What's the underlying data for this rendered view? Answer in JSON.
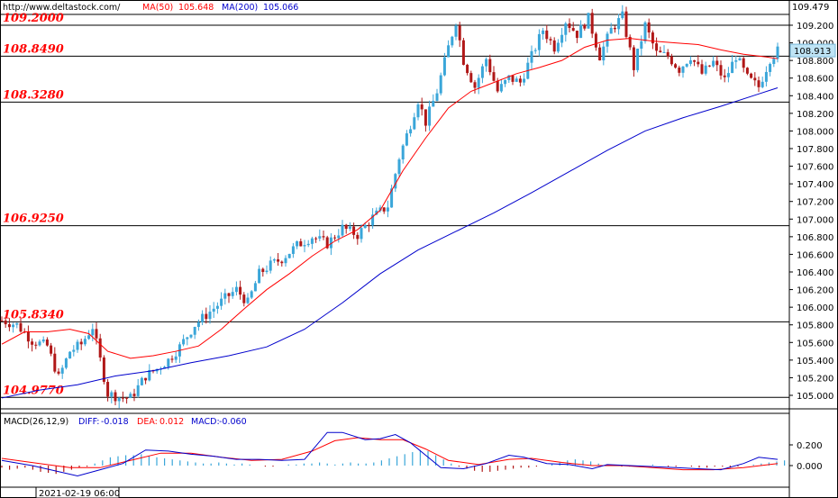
{
  "chart_data": [
    {
      "type": "candlestick",
      "header": {
        "source": "http://www.deltastock.com/",
        "ma50_label": "MA(50)",
        "ma50_value": "105.648",
        "ma200_label": "MA(200)",
        "ma200_value": "105.066"
      },
      "ylim": [
        104.9,
        109.479
      ],
      "y_ticks": [
        "105.000",
        "105.200",
        "105.400",
        "105.600",
        "105.800",
        "106.000",
        "106.200",
        "106.400",
        "106.600",
        "106.800",
        "107.000",
        "107.200",
        "107.400",
        "107.600",
        "107.800",
        "108.000",
        "108.200",
        "108.400",
        "108.600",
        "108.800",
        "109.000",
        "109.200"
      ],
      "top_value": "109.479",
      "current_price": "108.913",
      "levels": [
        {
          "value": 109.2,
          "label": "109.2000"
        },
        {
          "value": 108.849,
          "label": "108.8490"
        },
        {
          "value": 108.328,
          "label": "108.3280"
        },
        {
          "value": 106.925,
          "label": "106.9250"
        },
        {
          "value": 105.834,
          "label": "105.8340"
        },
        {
          "value": 104.977,
          "label": "104.9770"
        }
      ],
      "colors": {
        "up": "#3aa6d9",
        "down": "#b01818",
        "ma50": "#ff0000",
        "ma200": "#0000cc",
        "levels": "#000000",
        "level_text": "#ff0000"
      },
      "close_path": [
        [
          0,
          105.85
        ],
        [
          4,
          105.8
        ],
        [
          8,
          105.62
        ],
        [
          12,
          105.56
        ],
        [
          15,
          105.2
        ],
        [
          18,
          105.5
        ],
        [
          21,
          105.58
        ],
        [
          24,
          105.78
        ],
        [
          26,
          105.4
        ],
        [
          28,
          105.02
        ],
        [
          31,
          104.98
        ],
        [
          34,
          104.97
        ],
        [
          38,
          105.22
        ],
        [
          41,
          105.3
        ],
        [
          44,
          105.4
        ],
        [
          47,
          105.55
        ],
        [
          51,
          105.8
        ],
        [
          55,
          105.95
        ],
        [
          59,
          106.1
        ],
        [
          62,
          106.2
        ],
        [
          65,
          106.05
        ],
        [
          68,
          106.38
        ],
        [
          71,
          106.48
        ],
        [
          74,
          106.55
        ],
        [
          78,
          106.7
        ],
        [
          82,
          106.8
        ],
        [
          86,
          106.72
        ],
        [
          90,
          106.9
        ],
        [
          94,
          106.82
        ],
        [
          98,
          107.02
        ],
        [
          102,
          107.15
        ],
        [
          105,
          107.7
        ],
        [
          108,
          108.08
        ],
        [
          110,
          108.35
        ],
        [
          112,
          108.1
        ],
        [
          115,
          108.45
        ],
        [
          118,
          108.95
        ],
        [
          120,
          109.25
        ],
        [
          122,
          108.8
        ],
        [
          125,
          108.5
        ],
        [
          128,
          108.82
        ],
        [
          131,
          108.45
        ],
        [
          134,
          108.6
        ],
        [
          137,
          108.55
        ],
        [
          140,
          108.85
        ],
        [
          143,
          109.15
        ],
        [
          146,
          108.95
        ],
        [
          149,
          109.25
        ],
        [
          152,
          109.1
        ],
        [
          155,
          109.28
        ],
        [
          158,
          108.85
        ],
        [
          161,
          109.15
        ],
        [
          164,
          109.3
        ],
        [
          167,
          108.72
        ],
        [
          170,
          109.2
        ],
        [
          173,
          108.88
        ],
        [
          176,
          108.85
        ],
        [
          179,
          108.7
        ],
        [
          182,
          108.85
        ],
        [
          185,
          108.65
        ],
        [
          188,
          108.78
        ],
        [
          191,
          108.58
        ],
        [
          194,
          108.85
        ],
        [
          197,
          108.6
        ],
        [
          200,
          108.5
        ],
        [
          203,
          108.82
        ],
        [
          205,
          108.91
        ]
      ],
      "ma50_path": [
        [
          0,
          105.58
        ],
        [
          6,
          105.72
        ],
        [
          12,
          105.72
        ],
        [
          18,
          105.75
        ],
        [
          23,
          105.7
        ],
        [
          28,
          105.5
        ],
        [
          34,
          105.42
        ],
        [
          40,
          105.45
        ],
        [
          46,
          105.5
        ],
        [
          52,
          105.56
        ],
        [
          58,
          105.75
        ],
        [
          64,
          105.98
        ],
        [
          70,
          106.2
        ],
        [
          76,
          106.38
        ],
        [
          82,
          106.58
        ],
        [
          88,
          106.75
        ],
        [
          94,
          106.88
        ],
        [
          100,
          107.1
        ],
        [
          106,
          107.55
        ],
        [
          112,
          107.92
        ],
        [
          118,
          108.26
        ],
        [
          124,
          108.45
        ],
        [
          130,
          108.55
        ],
        [
          136,
          108.65
        ],
        [
          142,
          108.72
        ],
        [
          148,
          108.8
        ],
        [
          154,
          108.95
        ],
        [
          160,
          109.03
        ],
        [
          166,
          109.05
        ],
        [
          172,
          109.02
        ],
        [
          178,
          109.0
        ],
        [
          184,
          108.98
        ],
        [
          190,
          108.92
        ],
        [
          196,
          108.87
        ],
        [
          202,
          108.84
        ],
        [
          205,
          108.82
        ]
      ],
      "ma200_path": [
        [
          0,
          104.97
        ],
        [
          10,
          105.06
        ],
        [
          20,
          105.12
        ],
        [
          30,
          105.22
        ],
        [
          40,
          105.28
        ],
        [
          50,
          105.37
        ],
        [
          60,
          105.45
        ],
        [
          70,
          105.55
        ],
        [
          80,
          105.75
        ],
        [
          90,
          106.05
        ],
        [
          100,
          106.38
        ],
        [
          110,
          106.65
        ],
        [
          120,
          106.86
        ],
        [
          130,
          107.07
        ],
        [
          140,
          107.3
        ],
        [
          150,
          107.54
        ],
        [
          160,
          107.78
        ],
        [
          170,
          108.0
        ],
        [
          180,
          108.15
        ],
        [
          190,
          108.28
        ],
        [
          200,
          108.42
        ],
        [
          205,
          108.49
        ]
      ]
    },
    {
      "type": "macd",
      "label": "MACD(26,12,9)",
      "diff_label": "DIFF:",
      "diff_value": "-0.018",
      "dea_label": "DEA:",
      "dea_value": "0.012",
      "macd_label": "MACD:",
      "macd_value": "-0.060",
      "ylim": [
        -0.1,
        0.28
      ],
      "y_ticks": [
        "0.200",
        "0.000"
      ],
      "date_label": "2021-02-19 06:00",
      "colors": {
        "diff": "#0000cc",
        "dea": "#ff0000",
        "hist_pos": "#3aa6d9",
        "hist_neg": "#b01818"
      },
      "diff_path": [
        [
          0,
          0.05
        ],
        [
          8,
          0.0
        ],
        [
          14,
          -0.05
        ],
        [
          20,
          -0.1
        ],
        [
          26,
          -0.04
        ],
        [
          32,
          0.02
        ],
        [
          38,
          0.15
        ],
        [
          44,
          0.14
        ],
        [
          50,
          0.11
        ],
        [
          56,
          0.09
        ],
        [
          62,
          0.06
        ],
        [
          68,
          0.06
        ],
        [
          74,
          0.05
        ],
        [
          80,
          0.06
        ],
        [
          86,
          0.32
        ],
        [
          90,
          0.32
        ],
        [
          96,
          0.25
        ],
        [
          100,
          0.26
        ],
        [
          104,
          0.3
        ],
        [
          108,
          0.22
        ],
        [
          112,
          0.1
        ],
        [
          116,
          -0.02
        ],
        [
          122,
          -0.03
        ],
        [
          128,
          0.02
        ],
        [
          134,
          0.1
        ],
        [
          138,
          0.08
        ],
        [
          144,
          0.02
        ],
        [
          150,
          0.01
        ],
        [
          156,
          -0.03
        ],
        [
          160,
          0.01
        ],
        [
          166,
          0.0
        ],
        [
          172,
          -0.01
        ],
        [
          178,
          -0.02
        ],
        [
          184,
          -0.03
        ],
        [
          190,
          -0.04
        ],
        [
          196,
          0.02
        ],
        [
          200,
          0.08
        ],
        [
          205,
          0.06
        ]
      ],
      "dea_path": [
        [
          0,
          0.07
        ],
        [
          10,
          0.02
        ],
        [
          18,
          -0.02
        ],
        [
          26,
          -0.02
        ],
        [
          34,
          0.05
        ],
        [
          42,
          0.12
        ],
        [
          50,
          0.12
        ],
        [
          58,
          0.08
        ],
        [
          66,
          0.05
        ],
        [
          74,
          0.06
        ],
        [
          82,
          0.14
        ],
        [
          88,
          0.24
        ],
        [
          94,
          0.27
        ],
        [
          100,
          0.25
        ],
        [
          106,
          0.25
        ],
        [
          112,
          0.16
        ],
        [
          118,
          0.05
        ],
        [
          126,
          0.01
        ],
        [
          134,
          0.06
        ],
        [
          140,
          0.07
        ],
        [
          148,
          0.03
        ],
        [
          156,
          0.0
        ],
        [
          164,
          0.0
        ],
        [
          172,
          -0.02
        ],
        [
          180,
          -0.04
        ],
        [
          188,
          -0.04
        ],
        [
          196,
          -0.02
        ],
        [
          205,
          0.02
        ]
      ],
      "hist": [
        -0.02,
        -0.04,
        -0.03,
        -0.02,
        -0.04,
        -0.06,
        -0.07,
        -0.08,
        -0.06,
        -0.04,
        -0.02,
        -0.01,
        0.02,
        0.05,
        0.08,
        0.09,
        0.1,
        0.1,
        0.11,
        0.09,
        0.08,
        0.07,
        0.06,
        0.05,
        0.04,
        0.03,
        0.02,
        0.02,
        0.03,
        0.02,
        0.01,
        0.02,
        0.01,
        0.0,
        -0.01,
        -0.01,
        0.0,
        0.01,
        0.01,
        0.02,
        0.02,
        0.03,
        0.02,
        0.01,
        0.02,
        0.03,
        0.02,
        0.02,
        0.03,
        0.05,
        0.07,
        0.09,
        0.11,
        0.13,
        0.15,
        0.14,
        0.1,
        0.06,
        0.02,
        -0.01,
        -0.03,
        -0.05,
        -0.06,
        -0.06,
        -0.05,
        -0.04,
        -0.03,
        -0.02,
        -0.02,
        -0.01,
        0.0,
        0.02,
        0.03,
        0.05,
        0.06,
        0.05,
        0.04,
        0.02,
        0.01,
        0.0,
        -0.01,
        -0.01,
        0.0,
        0.0,
        0.01,
        0.0,
        -0.01,
        -0.01,
        0.0,
        -0.01,
        -0.02,
        -0.02,
        -0.01,
        -0.01,
        -0.02,
        -0.01,
        0.0,
        0.01,
        0.02,
        0.03,
        0.04,
        0.05
      ]
    }
  ]
}
